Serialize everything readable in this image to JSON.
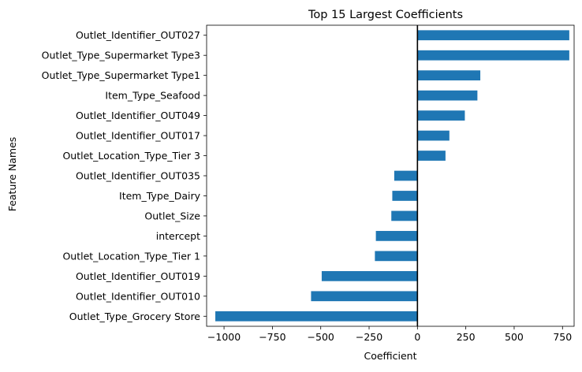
{
  "chart_data": {
    "type": "bar",
    "orientation": "horizontal",
    "title": "Top 15 Largest Coefficients",
    "xlabel": "Coefficient",
    "ylabel": "Feature Names",
    "xlim": [
      -1090,
      810
    ],
    "xticks": [
      -1000,
      -750,
      -500,
      -250,
      0,
      250,
      500,
      750
    ],
    "xtick_labels": [
      "−1000",
      "−750",
      "−500",
      "−250",
      "0",
      "250",
      "500",
      "750"
    ],
    "zero_line": true,
    "grid": false,
    "bar_color": "#1f77b4",
    "categories": [
      "Outlet_Identifier_OUT027",
      "Outlet_Type_Supermarket Type3",
      "Outlet_Type_Supermarket Type1",
      "Item_Type_Seafood",
      "Outlet_Identifier_OUT049",
      "Outlet_Identifier_OUT017",
      "Outlet_Location_Type_Tier 3",
      "Outlet_Identifier_OUT035",
      "Item_Type_Dairy",
      "Outlet_Size",
      "intercept",
      "Outlet_Location_Type_Tier 1",
      "Outlet_Identifier_OUT019",
      "Outlet_Identifier_OUT010",
      "Outlet_Type_Grocery Store"
    ],
    "values": [
      785,
      785,
      325,
      310,
      245,
      165,
      145,
      -120,
      -130,
      -135,
      -215,
      -220,
      -495,
      -550,
      -1045
    ]
  }
}
